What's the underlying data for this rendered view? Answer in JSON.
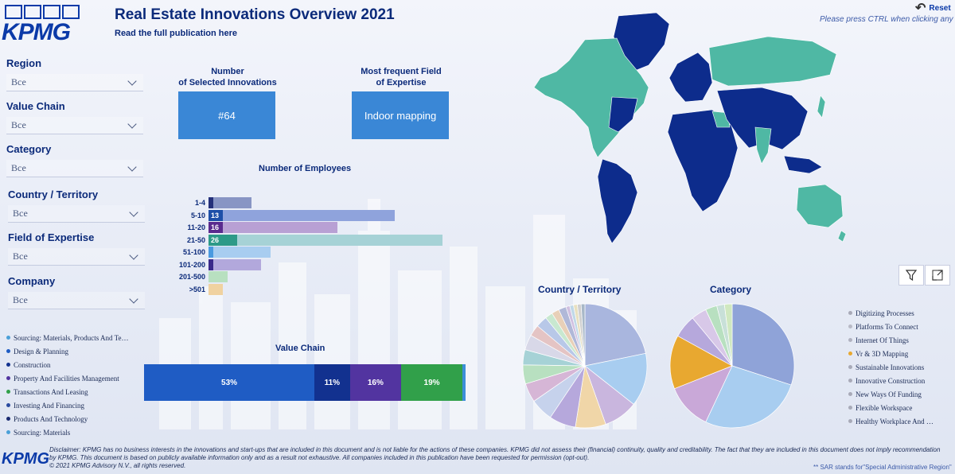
{
  "header": {
    "logo_text": "KPMG",
    "title": "Real Estate Innovations Overview 2021",
    "subtitle_link": "Read the full publication here",
    "reset_label": "Reset",
    "ctrl_note": "Please press CTRL when clicking any link"
  },
  "slicers": [
    {
      "label": "Region",
      "value": "Все"
    },
    {
      "label": "Value Chain",
      "value": "Все"
    },
    {
      "label": "Category",
      "value": "Все"
    },
    {
      "label": "Country / Territory",
      "value": "Все"
    },
    {
      "label": "Field of Expertise",
      "value": "Все"
    },
    {
      "label": "Company",
      "value": "Все"
    }
  ],
  "kpis": {
    "selected_label_line1": "Number",
    "selected_label_line2": "of Selected Innovations",
    "selected_value": "#64",
    "field_label_line1": "Most frequent Field",
    "field_label_line2": "of Expertise",
    "field_value": "Indoor mapping"
  },
  "employees": {
    "title": "Number of Employees",
    "rows": [
      {
        "label": "1-4",
        "total": 9,
        "dark": 1,
        "color": "#8895c4",
        "dark_color": "#24307a",
        "value_label": ""
      },
      {
        "label": "5-10",
        "total": 39,
        "dark": 3,
        "color": "#8fa3dc",
        "dark_color": "#1d4fa8",
        "value_label": "13"
      },
      {
        "label": "11-20",
        "total": 27,
        "dark": 3,
        "color": "#b8a0d4",
        "dark_color": "#5a2a8e",
        "value_label": "16"
      },
      {
        "label": "21-50",
        "total": 49,
        "dark": 6,
        "color": "#a6d2d6",
        "dark_color": "#2d9a88",
        "value_label": "26"
      },
      {
        "label": "51-100",
        "total": 13,
        "dark": 1,
        "color": "#a8cdf0",
        "dark_color": "#4a9ae0",
        "value_label": ""
      },
      {
        "label": "101-200",
        "total": 11,
        "dark": 1,
        "color": "#b2a8dc",
        "dark_color": "#3a2a8a",
        "value_label": ""
      },
      {
        "label": "201-500",
        "total": 4,
        "dark": 0,
        "color": "#b8e0c0",
        "dark_color": "#3a9a5a",
        "value_label": ""
      },
      {
        "label": ">501",
        "total": 3,
        "dark": 0,
        "color": "#f0d2a0",
        "dark_color": "#d89a40",
        "value_label": ""
      }
    ],
    "max": 50
  },
  "value_chain": {
    "title": "Value Chain",
    "segments": [
      {
        "label": "53%",
        "pct": 53,
        "color": "#1f5cc4"
      },
      {
        "label": "11%",
        "pct": 11,
        "color": "#12318f"
      },
      {
        "label": "16%",
        "pct": 16,
        "color": "#5234a0"
      },
      {
        "label": "19%",
        "pct": 19,
        "color": "#31a04a"
      },
      {
        "label": "",
        "pct": 1,
        "color": "#3c8ed8"
      }
    ],
    "legend": [
      {
        "label": "Sourcing: Materials, Products And Te…",
        "color": "#4aa0d8"
      },
      {
        "label": "Design & Planning",
        "color": "#1f5cc4"
      },
      {
        "label": "Construction",
        "color": "#12318f"
      },
      {
        "label": "Property And Facilities Management",
        "color": "#5234a0"
      },
      {
        "label": "Transactions And Leasing",
        "color": "#31a04a"
      },
      {
        "label": "Investing And Financing",
        "color": "#2a4aa0"
      },
      {
        "label": "Products And Technology",
        "color": "#1a2a70"
      },
      {
        "label": "Sourcing: Materials",
        "color": "#4aa0d8"
      }
    ]
  },
  "pies": {
    "country_title": "Country / Territory",
    "category_title": "Category",
    "category_legend": [
      {
        "label": "Digitizing Processes",
        "color": "#a8aab8"
      },
      {
        "label": "Platforms To Connect",
        "color": "#b8bac6"
      },
      {
        "label": "Internet Of Things",
        "color": "#b0b2c0"
      },
      {
        "label": "Vr & 3D Mapping",
        "color": "#e8a830"
      },
      {
        "label": "Sustainable Innovations",
        "color": "#a8aab8"
      },
      {
        "label": "Innovative Construction",
        "color": "#a8aab8"
      },
      {
        "label": "New Ways Of Funding",
        "color": "#a8aab8"
      },
      {
        "label": "Flexible Workspace",
        "color": "#a8aab8"
      },
      {
        "label": "Healthy Workplace And …",
        "color": "#a8aab8"
      }
    ]
  },
  "colors": {
    "map_highlight": "#0d2c8c",
    "map_other": "#4fb8a4",
    "kpi_card": "#3a87d6"
  },
  "footer": {
    "disclaimer": "Disclaimer: KPMG has no business interests in the innovations and start-ups that are included in this document and is not liable for the actions of these companies. KPMG did not assess their (financial) continuity, quality and creditability. The fact that they are included in this document does not imply recommendation by KPMG. This document is based on publicly available information only and as a result not exhaustive. All companies included in this publication have been requested for permission (opt-out).",
    "copyright": "© 2021 KPMG Advisory N.V., all rights reserved.",
    "logo_text": "KPMG",
    "sar_note": "** SAR stands for\"Special Administrative Region\""
  }
}
